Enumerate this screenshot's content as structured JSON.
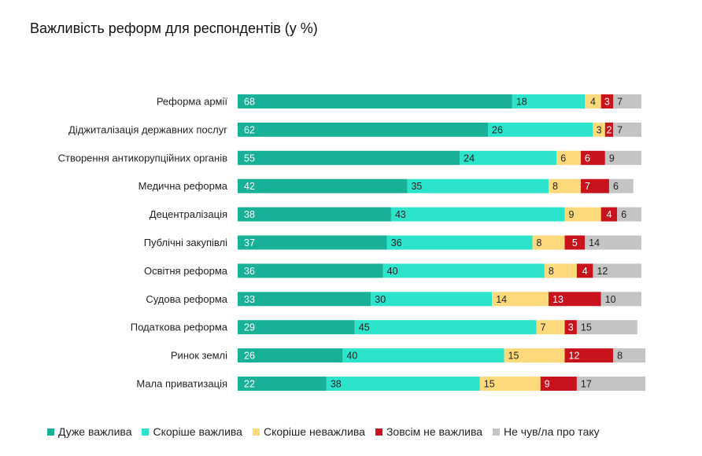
{
  "title": "Важливість реформ для респондентів (у %)",
  "chart_data": {
    "type": "bar",
    "orientation": "horizontal",
    "stacked": true,
    "categories": [
      "Реформа армії",
      "Діджиталізація державних послуг",
      "Створення антикорупційних органів",
      "Медична реформа",
      "Децентралізація",
      "Публічні закупівлі",
      "Освітня реформа",
      "Судова реформа",
      "Податкова реформа",
      "Ринок землі",
      "Мала приватизація"
    ],
    "series": [
      {
        "name": "Дуже важлива",
        "color": "#18b096",
        "label_color": "#ffffff",
        "values": [
          68,
          62,
          55,
          42,
          38,
          37,
          36,
          33,
          29,
          26,
          22
        ]
      },
      {
        "name": "Скоріше важлива",
        "color": "#2ce3cb",
        "label_color": "#222222",
        "values": [
          18,
          26,
          24,
          35,
          43,
          36,
          40,
          30,
          45,
          40,
          38
        ]
      },
      {
        "name": "Скоріше неважлива",
        "color": "#fcd97a",
        "label_color": "#222222",
        "values": [
          4,
          3,
          6,
          8,
          9,
          8,
          8,
          14,
          7,
          15,
          15
        ]
      },
      {
        "name": "Зовсім не важлива",
        "color": "#c8121c",
        "label_color": "#ffffff",
        "values": [
          3,
          2,
          6,
          7,
          4,
          5,
          4,
          13,
          3,
          12,
          9
        ]
      },
      {
        "name": "Не чув/ла про таку",
        "color": "#c4c4c4",
        "label_color": "#222222",
        "values": [
          7,
          7,
          9,
          6,
          6,
          14,
          12,
          10,
          15,
          8,
          17
        ]
      }
    ],
    "legend_position": "bottom",
    "grid": false
  }
}
